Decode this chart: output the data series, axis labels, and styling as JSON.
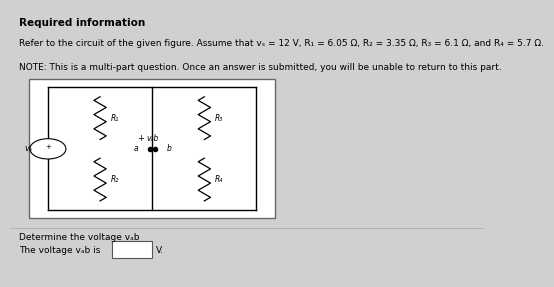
{
  "title": "Required information",
  "line1": "Refer to the circuit of the given figure. Assume that vs = 12 V, R1 = 6.05 Ω, R2 = 3.35 Ω, R3 = 6.1 Ω, and R4 = 5.7 Ω.",
  "line2": "NOTE: This is a multi-part question. Once an answer is submitted, you will be unable to return to this part.",
  "question": "Determine the voltage vab",
  "answer_line": "The voltage vab is",
  "unit": "V.",
  "bg_color": "#d0d0d0",
  "box_color": "#ffffff",
  "text_color": "#000000",
  "title_fontsize": 7.5,
  "body_fontsize": 6.5,
  "resistor_color": "#000000"
}
